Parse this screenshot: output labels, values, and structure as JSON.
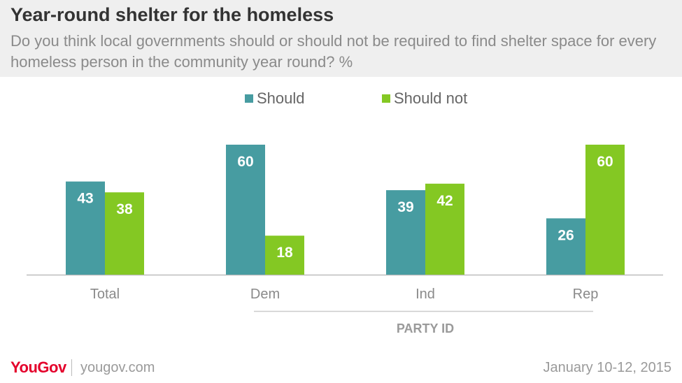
{
  "header": {
    "title": "Year-round shelter for the homeless",
    "subtitle": "Do you think local governments should or should not be required to find shelter space for every homeless person in the community year round? %"
  },
  "footer": {
    "brand": "YouGov",
    "url": "yougov.com",
    "date": "January 10-12, 2015"
  },
  "chart_data": {
    "type": "bar",
    "categories": [
      "Total",
      "Dem",
      "Ind",
      "Rep"
    ],
    "series": [
      {
        "name": "Should",
        "color": "#479ca1",
        "values": [
          43,
          60,
          39,
          26
        ]
      },
      {
        "name": "Should not",
        "color": "#84c823",
        "values": [
          38,
          18,
          42,
          60
        ]
      }
    ],
    "group_label": "PARTY ID",
    "ylim": [
      0,
      60
    ],
    "grid": false,
    "legend": "top-center"
  }
}
